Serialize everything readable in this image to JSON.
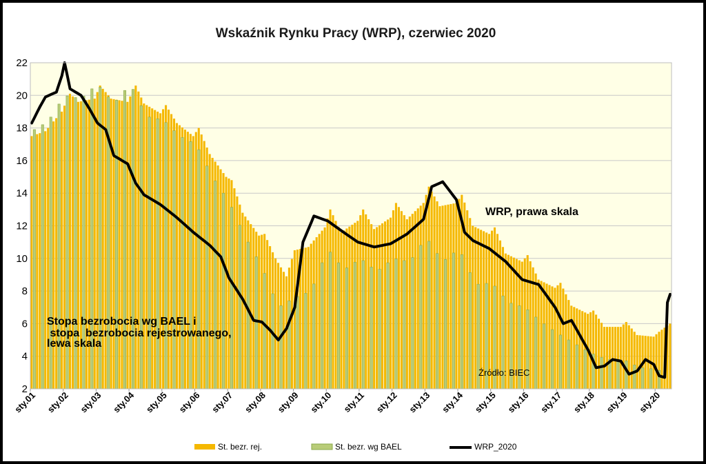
{
  "chart_data": {
    "type": "bar",
    "title": "Wskaźnik Rynku Pracy (WRP), czerwiec 2020",
    "ylim": [
      2,
      22
    ],
    "y_ticks": [
      "2",
      "4",
      "6",
      "8",
      "10",
      "12",
      "14",
      "16",
      "18",
      "20",
      "22"
    ],
    "x_ticks": [
      "sty.01",
      "sty.02",
      "sty.03",
      "sty.04",
      "sty.05",
      "sty.06",
      "sty.07",
      "sty.08",
      "sty.09",
      "sty.10",
      "sty.11",
      "sty.12",
      "sty.13",
      "sty.14",
      "sty.15",
      "sty.16",
      "sty.17",
      "sty.18",
      "sty.19",
      "sty.20"
    ],
    "grid": true,
    "legend_placement": "bottom",
    "annotations": {
      "wrp_label": "WRP, prawa skala",
      "unemp_label_1": "Stopa bezrobocia  wg BAEL i",
      "unemp_label_2": " stopa  bezrobocia rejestrowanego,",
      "unemp_label_3": "lewa skala",
      "source": "Źródło: BIEC"
    },
    "series": [
      {
        "name": "St. bezr. rej.",
        "type": "bar",
        "color": "#f5b800",
        "frequency": "monthly",
        "knots": [
          [
            "2001-01",
            17.5
          ],
          [
            "2001-06",
            17.8
          ],
          [
            "2001-12",
            19.0
          ],
          [
            "2002-03",
            20.1
          ],
          [
            "2002-06",
            19.6
          ],
          [
            "2002-12",
            19.8
          ],
          [
            "2003-02",
            20.6
          ],
          [
            "2003-06",
            19.8
          ],
          [
            "2003-12",
            19.6
          ],
          [
            "2004-03",
            20.6
          ],
          [
            "2004-06",
            19.5
          ],
          [
            "2004-12",
            18.9
          ],
          [
            "2005-02",
            19.4
          ],
          [
            "2005-06",
            18.3
          ],
          [
            "2005-12",
            17.5
          ],
          [
            "2006-02",
            18.0
          ],
          [
            "2006-06",
            16.4
          ],
          [
            "2006-12",
            15.0
          ],
          [
            "2007-02",
            14.8
          ],
          [
            "2007-06",
            12.8
          ],
          [
            "2007-12",
            11.4
          ],
          [
            "2008-02",
            11.5
          ],
          [
            "2008-06",
            10.0
          ],
          [
            "2008-10",
            8.9
          ],
          [
            "2009-01",
            10.5
          ],
          [
            "2009-06",
            10.7
          ],
          [
            "2009-12",
            11.9
          ],
          [
            "2010-02",
            13.0
          ],
          [
            "2010-06",
            11.6
          ],
          [
            "2010-12",
            12.3
          ],
          [
            "2011-02",
            13.0
          ],
          [
            "2011-06",
            11.8
          ],
          [
            "2011-12",
            12.5
          ],
          [
            "2012-02",
            13.4
          ],
          [
            "2012-06",
            12.4
          ],
          [
            "2012-12",
            13.4
          ],
          [
            "2013-02",
            14.4
          ],
          [
            "2013-06",
            13.2
          ],
          [
            "2013-12",
            13.4
          ],
          [
            "2014-02",
            13.9
          ],
          [
            "2014-06",
            12.0
          ],
          [
            "2014-12",
            11.5
          ],
          [
            "2015-02",
            11.9
          ],
          [
            "2015-06",
            10.3
          ],
          [
            "2015-12",
            9.8
          ],
          [
            "2016-02",
            10.2
          ],
          [
            "2016-06",
            8.7
          ],
          [
            "2016-12",
            8.2
          ],
          [
            "2017-02",
            8.5
          ],
          [
            "2017-06",
            7.1
          ],
          [
            "2017-12",
            6.6
          ],
          [
            "2018-02",
            6.8
          ],
          [
            "2018-06",
            5.8
          ],
          [
            "2018-12",
            5.8
          ],
          [
            "2019-02",
            6.1
          ],
          [
            "2019-06",
            5.3
          ],
          [
            "2019-12",
            5.2
          ],
          [
            "2020-02",
            5.5
          ],
          [
            "2020-06",
            6.0
          ]
        ]
      },
      {
        "name": "St. bezr. wg BAEL",
        "type": "bar",
        "color": "#8aa84a",
        "frequency": "quarterly",
        "knots": [
          [
            "2001-01",
            17.8
          ],
          [
            "2001-07",
            18.4
          ],
          [
            "2002-01",
            20.0
          ],
          [
            "2002-07",
            19.8
          ],
          [
            "2003-01",
            20.7
          ],
          [
            "2003-07",
            19.5
          ],
          [
            "2004-01",
            20.7
          ],
          [
            "2004-07",
            18.7
          ],
          [
            "2005-01",
            18.5
          ],
          [
            "2005-07",
            17.5
          ],
          [
            "2006-01",
            17.0
          ],
          [
            "2006-07",
            15.0
          ],
          [
            "2007-01",
            13.5
          ],
          [
            "2007-07",
            11.3
          ],
          [
            "2008-01",
            9.5
          ],
          [
            "2008-07",
            7.0
          ],
          [
            "2009-01",
            7.6
          ],
          [
            "2009-07",
            8.0
          ],
          [
            "2010-01",
            10.6
          ],
          [
            "2010-07",
            9.3
          ],
          [
            "2011-01",
            10.0
          ],
          [
            "2011-07",
            9.2
          ],
          [
            "2012-01",
            10.0
          ],
          [
            "2012-07",
            9.8
          ],
          [
            "2013-01",
            11.3
          ],
          [
            "2013-07",
            9.8
          ],
          [
            "2014-01",
            10.6
          ],
          [
            "2014-07",
            8.4
          ],
          [
            "2015-01",
            8.5
          ],
          [
            "2015-07",
            7.3
          ],
          [
            "2016-01",
            7.0
          ],
          [
            "2016-07",
            6.1
          ],
          [
            "2017-01",
            5.4
          ],
          [
            "2017-07",
            4.8
          ],
          [
            "2018-01",
            4.2
          ],
          [
            "2018-07",
            3.8
          ],
          [
            "2019-01",
            3.8
          ],
          [
            "2019-07",
            3.3
          ],
          [
            "2020-01",
            3.2
          ],
          [
            "2020-04",
            3.0
          ]
        ]
      },
      {
        "name": "WRP_2020",
        "type": "line",
        "color": "#000000",
        "frequency": "monthly",
        "knots": [
          [
            "2001-01",
            18.3
          ],
          [
            "2001-04",
            19.3
          ],
          [
            "2001-06",
            19.9
          ],
          [
            "2001-10",
            20.2
          ],
          [
            "2001-12",
            21.2
          ],
          [
            "2002-01",
            22.0
          ],
          [
            "2002-03",
            20.4
          ],
          [
            "2002-07",
            20.0
          ],
          [
            "2002-10",
            19.2
          ],
          [
            "2003-01",
            18.3
          ],
          [
            "2003-04",
            17.9
          ],
          [
            "2003-07",
            16.3
          ],
          [
            "2003-12",
            15.8
          ],
          [
            "2004-03",
            14.6
          ],
          [
            "2004-06",
            13.9
          ],
          [
            "2004-12",
            13.3
          ],
          [
            "2005-06",
            12.5
          ],
          [
            "2005-12",
            11.6
          ],
          [
            "2006-06",
            10.8
          ],
          [
            "2006-10",
            10.1
          ],
          [
            "2007-01",
            8.8
          ],
          [
            "2007-06",
            7.5
          ],
          [
            "2007-10",
            6.2
          ],
          [
            "2008-01",
            6.1
          ],
          [
            "2008-04",
            5.6
          ],
          [
            "2008-07",
            5.0
          ],
          [
            "2008-10",
            5.7
          ],
          [
            "2009-01",
            7.0
          ],
          [
            "2009-04",
            11.0
          ],
          [
            "2009-08",
            12.6
          ],
          [
            "2010-01",
            12.3
          ],
          [
            "2010-06",
            11.7
          ],
          [
            "2010-12",
            11.0
          ],
          [
            "2011-06",
            10.7
          ],
          [
            "2011-12",
            10.9
          ],
          [
            "2012-06",
            11.5
          ],
          [
            "2012-12",
            12.4
          ],
          [
            "2013-03",
            14.4
          ],
          [
            "2013-07",
            14.7
          ],
          [
            "2013-12",
            13.6
          ],
          [
            "2014-03",
            11.6
          ],
          [
            "2014-06",
            11.1
          ],
          [
            "2014-12",
            10.6
          ],
          [
            "2015-06",
            9.8
          ],
          [
            "2015-12",
            8.7
          ],
          [
            "2016-06",
            8.4
          ],
          [
            "2016-12",
            7.0
          ],
          [
            "2017-03",
            6.0
          ],
          [
            "2017-06",
            6.2
          ],
          [
            "2017-09",
            5.3
          ],
          [
            "2017-12",
            4.4
          ],
          [
            "2018-03",
            3.3
          ],
          [
            "2018-06",
            3.4
          ],
          [
            "2018-09",
            3.8
          ],
          [
            "2018-12",
            3.7
          ],
          [
            "2019-03",
            2.9
          ],
          [
            "2019-06",
            3.1
          ],
          [
            "2019-09",
            3.8
          ],
          [
            "2019-12",
            3.5
          ],
          [
            "2020-02",
            2.8
          ],
          [
            "2020-04",
            2.7
          ],
          [
            "2020-05",
            7.3
          ],
          [
            "2020-06",
            7.8
          ]
        ]
      }
    ]
  }
}
